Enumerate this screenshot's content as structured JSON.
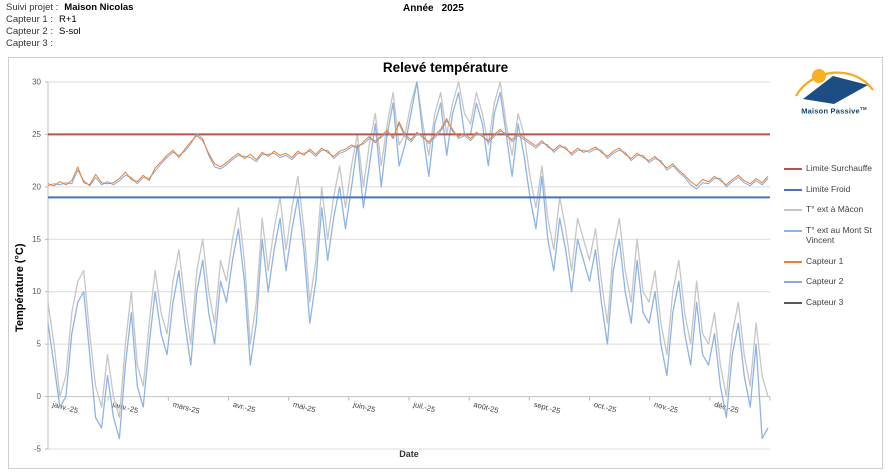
{
  "page": {
    "header": {
      "rows": [
        {
          "label": "Suivi projet :",
          "value": "Maison Nicolas"
        },
        {
          "label": "Capteur 1 :",
          "value": "R+1"
        },
        {
          "label": "Capteur 2 :",
          "value": "S-sol"
        },
        {
          "label": "Capteur 3 :",
          "value": ""
        }
      ],
      "year_label": "Année",
      "year_value": "2025"
    },
    "logo": {
      "brand": "Maison Passive",
      "tm": "TM"
    }
  },
  "chart_data": {
    "type": "line",
    "title": "Relevé température",
    "xlabel": "Date",
    "ylabel": "Température  (°C)",
    "ylim": [
      -5,
      30
    ],
    "ytick_step": 5,
    "grid": true,
    "legend_position": "right",
    "x_tick_labels": [
      "janv.-25",
      "janv.-25",
      "mars-25",
      "avr.-25",
      "mai-25",
      "juin-25",
      "juil.-25",
      "août-25",
      "sept.-25",
      "oct.-25",
      "nov.-25",
      "déc.-25"
    ],
    "x_days": [
      1,
      4,
      7,
      10,
      13,
      16,
      19,
      22,
      25,
      28,
      31,
      34,
      37,
      40,
      43,
      46,
      49,
      52,
      55,
      58,
      61,
      64,
      67,
      70,
      73,
      76,
      79,
      82,
      85,
      88,
      91,
      94,
      97,
      100,
      103,
      106,
      109,
      112,
      115,
      118,
      121,
      124,
      127,
      130,
      133,
      136,
      139,
      142,
      145,
      148,
      151,
      154,
      157,
      160,
      163,
      166,
      169,
      172,
      175,
      178,
      181,
      184,
      187,
      190,
      193,
      196,
      199,
      202,
      205,
      208,
      211,
      214,
      217,
      220,
      223,
      226,
      229,
      232,
      235,
      238,
      241,
      244,
      247,
      250,
      253,
      256,
      259,
      262,
      265,
      268,
      271,
      274,
      277,
      280,
      283,
      286,
      289,
      292,
      295,
      298,
      301,
      304,
      307,
      310,
      313,
      316,
      319,
      322,
      325,
      328,
      331,
      334,
      337,
      340,
      343,
      346,
      349,
      352,
      355,
      358,
      361,
      364
    ],
    "series": [
      {
        "name": "Limite Surchauffe",
        "color": "#C0504D",
        "type": "constant",
        "value": 25
      },
      {
        "name": "Limite Froid",
        "color": "#4472C4",
        "type": "constant",
        "value": 19
      },
      {
        "name": "T° ext à Mâcon",
        "color": "#C6C6C6",
        "values": [
          9,
          5,
          0,
          2,
          8,
          11,
          12,
          6,
          1,
          -1,
          4,
          0,
          -2,
          5,
          10,
          3,
          1,
          7,
          12,
          8,
          6,
          11,
          14,
          9,
          5,
          12,
          15,
          10,
          7,
          13,
          11,
          15,
          18,
          13,
          5,
          9,
          17,
          12,
          16,
          19,
          14,
          18,
          21,
          16,
          9,
          13,
          20,
          15,
          19,
          22,
          18,
          22,
          25,
          20,
          24,
          27,
          22,
          26,
          29,
          24,
          25,
          28,
          30,
          26,
          23,
          27,
          29,
          25,
          28,
          30,
          27,
          26,
          29,
          27,
          24,
          28,
          30,
          26,
          23,
          27,
          25,
          21,
          18,
          22,
          17,
          14,
          19,
          16,
          12,
          17,
          15,
          13,
          16,
          11,
          7,
          14,
          17,
          12,
          9,
          15,
          10,
          9,
          12,
          7,
          4,
          10,
          13,
          8,
          5,
          11,
          6,
          5,
          8,
          3,
          0,
          6,
          9,
          4,
          1,
          7,
          2,
          0
        ]
      },
      {
        "name": "T° ext au Mont St Vincent",
        "color": "#8DB4E6",
        "values": [
          7,
          3,
          -1,
          0,
          6,
          9,
          10,
          4,
          -2,
          -3,
          2,
          -2,
          -4,
          3,
          8,
          1,
          -1,
          5,
          10,
          6,
          4,
          9,
          12,
          7,
          3,
          10,
          13,
          8,
          5,
          11,
          9,
          13,
          16,
          11,
          3,
          7,
          15,
          10,
          14,
          17,
          12,
          16,
          19,
          14,
          7,
          11,
          18,
          13,
          17,
          20,
          16,
          20,
          24,
          18,
          22,
          26,
          20,
          25,
          28,
          22,
          24,
          27,
          30,
          25,
          21,
          26,
          28,
          23,
          27,
          29,
          25,
          25,
          28,
          26,
          22,
          27,
          29,
          25,
          21,
          26,
          23,
          19,
          16,
          21,
          15,
          12,
          17,
          14,
          10,
          15,
          13,
          11,
          14,
          9,
          5,
          12,
          15,
          10,
          7,
          13,
          8,
          7,
          10,
          5,
          2,
          8,
          11,
          6,
          3,
          9,
          4,
          3,
          6,
          1,
          -2,
          4,
          7,
          2,
          -1,
          5,
          -4,
          -3
        ]
      },
      {
        "name": "Capteur 1",
        "color": "#ED7D31",
        "values": [
          20.3,
          20.1,
          20.5,
          20.2,
          20.6,
          21.9,
          20.4,
          20.2,
          21.2,
          20.4,
          20.3,
          20.4,
          20.8,
          21.4,
          20.7,
          20.5,
          21.1,
          20.6,
          21.8,
          22.4,
          23.0,
          23.5,
          22.8,
          23.6,
          24.3,
          24.9,
          24.4,
          23.2,
          22.2,
          21.9,
          22.3,
          22.8,
          23.2,
          22.7,
          23.1,
          22.6,
          23.3,
          22.9,
          23.4,
          23.0,
          23.2,
          22.8,
          23.4,
          23.0,
          23.6,
          23.1,
          23.7,
          23.3,
          22.9,
          23.4,
          23.6,
          24.0,
          23.7,
          24.3,
          24.8,
          24.2,
          24.9,
          25.4,
          24.6,
          26.2,
          25.0,
          24.5,
          25.2,
          24.7,
          24.3,
          24.9,
          25.5,
          26.5,
          25.3,
          24.8,
          25.1,
          24.6,
          25.2,
          24.8,
          24.4,
          25.0,
          25.5,
          24.9,
          24.5,
          25.1,
          24.7,
          24.3,
          23.9,
          24.4,
          23.8,
          23.5,
          24.0,
          23.6,
          23.2,
          23.7,
          23.3,
          23.5,
          23.8,
          23.3,
          22.9,
          23.4,
          23.7,
          23.1,
          22.7,
          23.2,
          22.8,
          22.5,
          22.9,
          22.3,
          21.8,
          22.2,
          21.6,
          21.1,
          20.5,
          20.1,
          20.7,
          20.5,
          21.0,
          20.6,
          20.2,
          20.7,
          21.1,
          20.6,
          20.3,
          20.8,
          20.4,
          21.0
        ]
      },
      {
        "name": "Capteur 2",
        "color": "#85A9DB",
        "values": [
          20.1,
          20.3,
          20.2,
          20.4,
          20.3,
          21.6,
          20.6,
          20.1,
          20.9,
          20.2,
          20.5,
          20.2,
          20.6,
          21.1,
          20.9,
          20.3,
          20.9,
          20.8,
          21.5,
          22.2,
          22.8,
          23.3,
          23.0,
          23.4,
          24.1,
          25.1,
          24.6,
          23.0,
          21.9,
          21.7,
          22.1,
          22.6,
          23.0,
          22.9,
          22.8,
          22.4,
          23.1,
          23.1,
          23.2,
          22.8,
          23.0,
          22.6,
          23.2,
          23.2,
          23.4,
          22.9,
          23.5,
          23.5,
          22.7,
          23.2,
          23.4,
          23.8,
          23.9,
          24.1,
          24.6,
          24.4,
          24.7,
          25.2,
          24.8,
          26.0,
          24.8,
          24.3,
          25.0,
          24.9,
          24.1,
          24.7,
          25.3,
          26.3,
          25.5,
          24.6,
          24.9,
          24.4,
          25.0,
          25.0,
          24.2,
          24.8,
          25.3,
          25.1,
          24.3,
          24.9,
          24.5,
          24.1,
          23.7,
          24.2,
          24.0,
          23.3,
          23.8,
          23.8,
          23.0,
          23.5,
          23.5,
          23.3,
          23.6,
          23.5,
          22.7,
          23.2,
          23.5,
          23.3,
          22.5,
          23.0,
          23.0,
          22.3,
          22.7,
          22.5,
          21.6,
          22.0,
          21.4,
          20.9,
          20.2,
          19.8,
          20.4,
          20.3,
          20.8,
          20.8,
          20.0,
          20.5,
          20.9,
          20.4,
          20.1,
          20.6,
          20.2,
          20.8
        ]
      },
      {
        "name": "Capteur 3",
        "color": "#595959",
        "values": []
      }
    ]
  }
}
